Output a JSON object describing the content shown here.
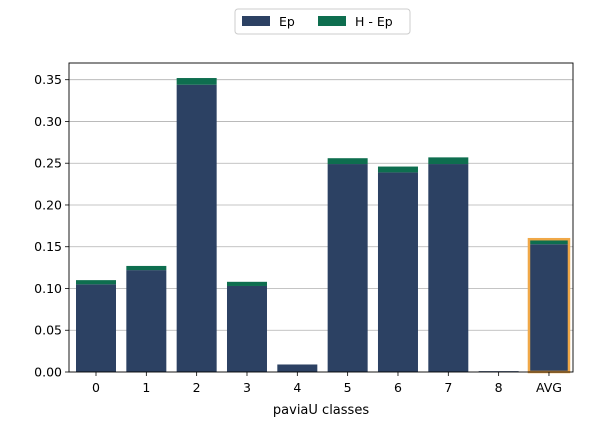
{
  "chart_data": {
    "type": "bar",
    "stacked": true,
    "xlabel": "paviaU classes",
    "ylabel": "",
    "categories": [
      "0",
      "1",
      "2",
      "3",
      "4",
      "5",
      "6",
      "7",
      "8",
      "AVG"
    ],
    "series": [
      {
        "name": "Ep",
        "color": "#2c4163",
        "values": [
          0.105,
          0.122,
          0.344,
          0.103,
          0.009,
          0.249,
          0.239,
          0.249,
          0.001,
          0.153
        ]
      },
      {
        "name": "H - Ep",
        "color": "#0e6e4f",
        "values": [
          0.005,
          0.005,
          0.008,
          0.005,
          0.0,
          0.007,
          0.007,
          0.008,
          0.0,
          0.006
        ]
      }
    ],
    "ylim": [
      0,
      0.37
    ],
    "yticks": [
      "0.00",
      "0.05",
      "0.10",
      "0.15",
      "0.20",
      "0.25",
      "0.30",
      "0.35"
    ],
    "grid": "horizontal",
    "legend_placement": "top-center",
    "highlight": {
      "category": "AVG",
      "edge_color": "#f0a848"
    }
  }
}
